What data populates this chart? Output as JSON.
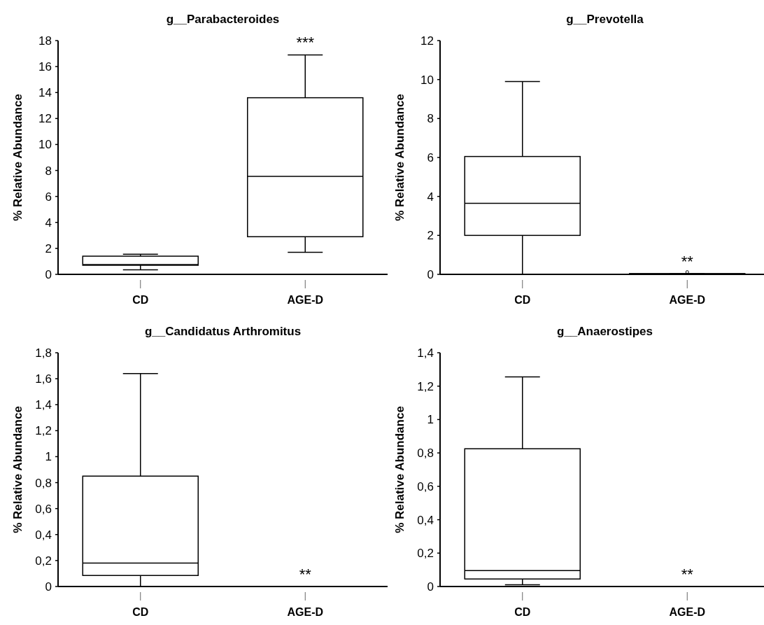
{
  "chart_data": [
    {
      "type": "box",
      "title": "g__Parabacteroides",
      "ylabel": "% Relative Abundance",
      "categories": [
        "CD",
        "AGE-D"
      ],
      "ylim": [
        0,
        18
      ],
      "yticks": [
        0,
        2,
        4,
        6,
        8,
        10,
        12,
        14,
        16,
        18
      ],
      "boxes": [
        {
          "low": 0.35,
          "q1": 0.7,
          "median": 0.75,
          "q3": 1.4,
          "high": 1.55
        },
        {
          "low": 1.7,
          "q1": 2.9,
          "median": 7.55,
          "q3": 13.6,
          "high": 16.9
        }
      ],
      "annotations": [
        "***"
      ],
      "grid": false
    },
    {
      "type": "box",
      "title": "g__Prevotella",
      "ylabel": "% Relative Abundance",
      "categories": [
        "CD",
        "AGE-D"
      ],
      "ylim": [
        0,
        12
      ],
      "yticks": [
        0,
        2,
        4,
        6,
        8,
        10,
        12
      ],
      "boxes": [
        {
          "low": 0,
          "q1": 2.0,
          "median": 3.65,
          "q3": 6.05,
          "high": 9.9
        },
        {
          "low": 0,
          "q1": 0,
          "median": 0.02,
          "q3": 0.04,
          "high": 0.04,
          "outliers": [
            0.12
          ]
        }
      ],
      "annotations": [
        "**"
      ],
      "grid": false
    },
    {
      "type": "box",
      "title": "g__Candidatus Arthromitus",
      "ylabel": "% Relative Abundance",
      "categories": [
        "CD",
        "AGE-D"
      ],
      "ylim": [
        0,
        1.8
      ],
      "yticks": [
        0,
        {
          "value": 0.2,
          "label": "0,2"
        },
        {
          "value": 0.4,
          "label": "0,4"
        },
        {
          "value": 0.6,
          "label": "0,6"
        },
        {
          "value": 0.8,
          "label": "0,8"
        },
        1,
        {
          "value": 1.2,
          "label": "1,2"
        },
        {
          "value": 1.4,
          "label": "1,4"
        },
        {
          "value": 1.6,
          "label": "1,6"
        },
        {
          "value": 1.8,
          "label": "1,8"
        }
      ],
      "boxes": [
        {
          "low": 0,
          "q1": 0.085,
          "median": 0.18,
          "q3": 0.85,
          "high": 1.64
        },
        {
          "low": 0,
          "q1": 0,
          "median": 0,
          "q3": 0,
          "high": 0
        }
      ],
      "annotations": [
        "**"
      ],
      "grid": false
    },
    {
      "type": "box",
      "title": "g__Anaerostipes",
      "ylabel": "% Relative Abundance",
      "categories": [
        "CD",
        "AGE-D"
      ],
      "ylim": [
        0,
        1.4
      ],
      "yticks": [
        0,
        {
          "value": 0.2,
          "label": "0,2"
        },
        {
          "value": 0.4,
          "label": "0,4"
        },
        {
          "value": 0.6,
          "label": "0,6"
        },
        {
          "value": 0.8,
          "label": "0,8"
        },
        1,
        {
          "value": 1.2,
          "label": "1,2"
        },
        {
          "value": 1.4,
          "label": "1,4"
        }
      ],
      "boxes": [
        {
          "low": 0.01,
          "q1": 0.045,
          "median": 0.095,
          "q3": 0.825,
          "high": 1.255
        },
        {
          "low": 0,
          "q1": 0,
          "median": 0,
          "q3": 0,
          "high": 0
        }
      ],
      "annotations": [
        "**"
      ],
      "grid": false
    }
  ]
}
